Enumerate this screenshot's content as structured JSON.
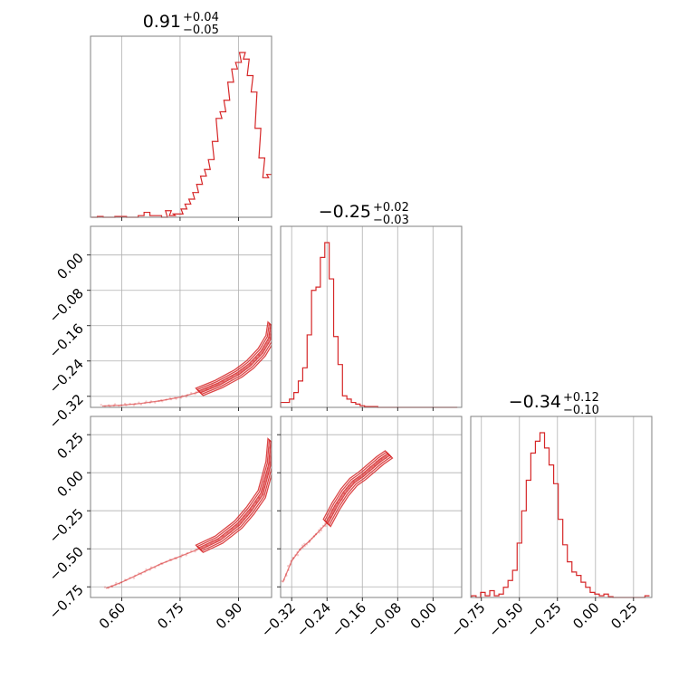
{
  "chart_data": {
    "type": "corner",
    "color": "#d62728",
    "grid": true,
    "parameters": [
      {
        "range": [
          0.52,
          0.985
        ],
        "ticks": [
          "0.60",
          "0.75",
          "0.90"
        ],
        "tick_values": [
          0.6,
          0.75,
          0.9
        ],
        "summary": {
          "median": "0.91",
          "plus": "+0.04",
          "minus": "−0.05"
        }
      },
      {
        "range": [
          -0.345,
          0.065
        ],
        "ticks": [
          "−0.32",
          "−0.24",
          "−0.16",
          "−0.08",
          "0.00"
        ],
        "tick_values": [
          -0.32,
          -0.24,
          -0.16,
          -0.08,
          0.0
        ],
        "summary": {
          "median": "−0.25",
          "plus": "+0.02",
          "minus": "−0.03"
        }
      },
      {
        "range": [
          -0.82,
          0.37
        ],
        "ticks": [
          "−0.75",
          "−0.50",
          "−0.25",
          "0.00",
          "0.25"
        ],
        "tick_values": [
          -0.75,
          -0.5,
          -0.25,
          0.0,
          0.25
        ],
        "summary": {
          "median": "−0.34",
          "plus": "+0.12",
          "minus": "−0.10"
        }
      }
    ],
    "histograms": [
      {
        "param": 0,
        "x": [
          0.53,
          0.545,
          0.56,
          0.575,
          0.59,
          0.605,
          0.62,
          0.635,
          0.65,
          0.665,
          0.68,
          0.695,
          0.71,
          0.72,
          0.73,
          0.74,
          0.75,
          0.76,
          0.77,
          0.78,
          0.79,
          0.8,
          0.81,
          0.82,
          0.83,
          0.84,
          0.85,
          0.86,
          0.87,
          0.88,
          0.89,
          0.9,
          0.91,
          0.92,
          0.93,
          0.94,
          0.95,
          0.96,
          0.97,
          0.98
        ],
        "counts": [
          0,
          0.5,
          0,
          0,
          0.5,
          0.5,
          0,
          0,
          1,
          3,
          1,
          1,
          0,
          4,
          1,
          2,
          2,
          5,
          8,
          11,
          15,
          20,
          25,
          29,
          35,
          46,
          60,
          64,
          71,
          82,
          90,
          94,
          100,
          96,
          86,
          76,
          54,
          36,
          24,
          26
        ]
      },
      {
        "param": 1,
        "x": [
          -0.34,
          -0.33,
          -0.32,
          -0.31,
          -0.3,
          -0.29,
          -0.28,
          -0.27,
          -0.26,
          -0.25,
          -0.24,
          -0.23,
          -0.22,
          -0.21,
          -0.2,
          -0.19,
          -0.18,
          -0.17,
          -0.16,
          -0.15,
          -0.14,
          -0.13,
          -0.12,
          -0.11,
          -0.1,
          -0.09,
          -0.08,
          -0.07,
          -0.06,
          -0.05,
          -0.04,
          -0.03,
          -0.02,
          -0.01,
          0.0,
          0.01,
          0.02,
          0.03,
          0.04,
          0.05
        ],
        "counts": [
          3,
          3,
          5,
          9,
          16,
          24,
          44,
          71,
          73,
          91,
          100,
          78,
          43,
          26,
          7,
          5,
          3,
          2,
          1,
          0.5,
          0.5,
          0.5,
          0,
          0,
          0,
          0,
          0,
          0,
          0,
          0,
          0,
          0,
          0,
          0,
          0,
          0,
          0,
          0,
          0,
          0
        ]
      },
      {
        "param": 2,
        "x": [
          -0.8,
          -0.77,
          -0.74,
          -0.71,
          -0.68,
          -0.65,
          -0.62,
          -0.59,
          -0.56,
          -0.53,
          -0.5,
          -0.47,
          -0.44,
          -0.41,
          -0.38,
          -0.35,
          -0.32,
          -0.29,
          -0.26,
          -0.23,
          -0.2,
          -0.17,
          -0.14,
          -0.11,
          -0.08,
          -0.05,
          -0.02,
          0.01,
          0.04,
          0.07,
          0.1,
          0.13,
          0.16,
          0.19,
          0.22,
          0.25,
          0.28,
          0.31,
          0.34
        ],
        "counts": [
          1,
          0,
          3,
          1,
          4,
          1,
          2,
          6,
          10,
          16,
          32,
          51,
          69,
          85,
          92,
          97,
          88,
          78,
          67,
          46,
          31,
          21,
          15,
          13,
          9,
          6,
          3,
          2,
          1,
          2,
          0.5,
          0,
          0,
          0,
          0,
          0,
          0,
          0,
          1
        ]
      }
    ],
    "scatter_curves": [
      {
        "x_param": 0,
        "y_param": 1,
        "x": [
          0.55,
          0.6,
          0.65,
          0.7,
          0.75,
          0.8,
          0.85,
          0.9,
          0.93,
          0.96,
          0.98,
          0.985
        ],
        "y": [
          -0.342,
          -0.34,
          -0.336,
          -0.33,
          -0.322,
          -0.31,
          -0.292,
          -0.268,
          -0.248,
          -0.22,
          -0.19,
          -0.16
        ]
      },
      {
        "x_param": 0,
        "y_param": 2,
        "x": [
          0.56,
          0.6,
          0.65,
          0.7,
          0.75,
          0.8,
          0.85,
          0.9,
          0.93,
          0.96,
          0.98,
          0.985
        ],
        "y": [
          -0.76,
          -0.72,
          -0.66,
          -0.6,
          -0.55,
          -0.5,
          -0.44,
          -0.34,
          -0.25,
          -0.14,
          0.05,
          0.2
        ]
      },
      {
        "x_param": 1,
        "y_param": 2,
        "x": [
          -0.34,
          -0.32,
          -0.3,
          -0.28,
          -0.26,
          -0.24,
          -0.22,
          -0.2,
          -0.18,
          -0.16,
          -0.14,
          -0.12,
          -0.1
        ],
        "y": [
          -0.72,
          -0.58,
          -0.5,
          -0.45,
          -0.39,
          -0.33,
          -0.22,
          -0.13,
          -0.06,
          -0.02,
          0.03,
          0.08,
          0.12
        ]
      }
    ]
  }
}
